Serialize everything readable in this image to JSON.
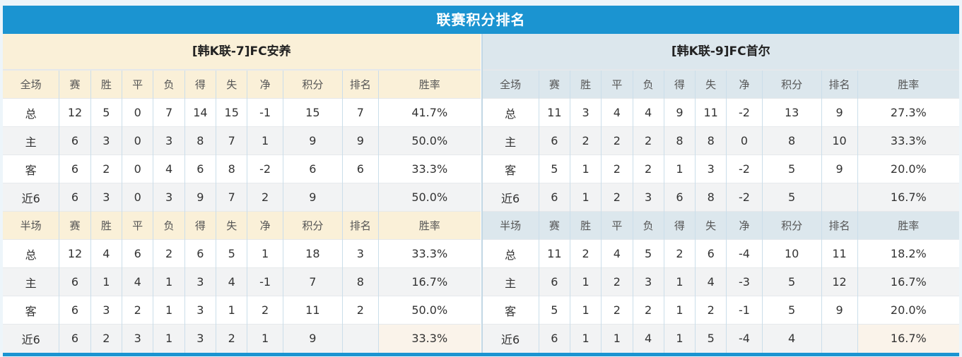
{
  "page": {
    "title": "联赛积分排名"
  },
  "columns": {
    "full_label": "全场",
    "half_label": "半场",
    "stat_headers": [
      "赛",
      "胜",
      "平",
      "负",
      "得",
      "失",
      "净",
      "积分",
      "排名",
      "胜率"
    ]
  },
  "colors": {
    "banner_blue": "#1B94D1",
    "left_header_cream": "#FAF0D8",
    "right_header_bluegray": "#DCE7ED",
    "value_red": "#E63A3A",
    "rank_blue": "#3E8ED8",
    "home_label_red": "#C53131",
    "away_label_blue": "#5B5BD0"
  },
  "teams": [
    {
      "name": "[韩K联-7]FC安养",
      "full": {
        "rows": [
          {
            "label": "总",
            "values": [
              "12",
              "5",
              "0",
              "7",
              "14",
              "15",
              "-1"
            ],
            "points": "15",
            "rank": "7",
            "winrate": "41.7%"
          },
          {
            "label": "主",
            "values": [
              "6",
              "3",
              "0",
              "3",
              "8",
              "7",
              "1"
            ],
            "points": "9",
            "rank": "9",
            "winrate": "50.0%"
          },
          {
            "label": "客",
            "values": [
              "6",
              "2",
              "0",
              "4",
              "6",
              "8",
              "-2"
            ],
            "points": "6",
            "rank": "6",
            "winrate": "33.3%"
          },
          {
            "label": "近6",
            "values": [
              "6",
              "3",
              "0",
              "3",
              "9",
              "7",
              "2"
            ],
            "points": "9",
            "rank": "",
            "winrate": "50.0%"
          }
        ]
      },
      "half": {
        "rows": [
          {
            "label": "总",
            "values": [
              "12",
              "4",
              "6",
              "2",
              "6",
              "5",
              "1"
            ],
            "points": "18",
            "rank": "3",
            "winrate": "33.3%"
          },
          {
            "label": "主",
            "values": [
              "6",
              "1",
              "4",
              "1",
              "3",
              "4",
              "-1"
            ],
            "points": "7",
            "rank": "8",
            "winrate": "16.7%"
          },
          {
            "label": "客",
            "values": [
              "6",
              "3",
              "2",
              "1",
              "3",
              "1",
              "2"
            ],
            "points": "11",
            "rank": "2",
            "winrate": "50.0%"
          },
          {
            "label": "近6",
            "values": [
              "6",
              "2",
              "3",
              "1",
              "3",
              "2",
              "1"
            ],
            "points": "9",
            "rank": "",
            "winrate": "33.3%"
          }
        ]
      }
    },
    {
      "name": "[韩K联-9]FC首尔",
      "full": {
        "rows": [
          {
            "label": "总",
            "values": [
              "11",
              "3",
              "4",
              "4",
              "9",
              "11",
              "-2"
            ],
            "points": "13",
            "rank": "9",
            "winrate": "27.3%"
          },
          {
            "label": "主",
            "values": [
              "6",
              "2",
              "2",
              "2",
              "8",
              "8",
              "0"
            ],
            "points": "8",
            "rank": "10",
            "winrate": "33.3%"
          },
          {
            "label": "客",
            "values": [
              "5",
              "1",
              "2",
              "2",
              "1",
              "3",
              "-2"
            ],
            "points": "5",
            "rank": "9",
            "winrate": "20.0%"
          },
          {
            "label": "近6",
            "values": [
              "6",
              "1",
              "2",
              "3",
              "6",
              "8",
              "-2"
            ],
            "points": "5",
            "rank": "",
            "winrate": "16.7%"
          }
        ]
      },
      "half": {
        "rows": [
          {
            "label": "总",
            "values": [
              "11",
              "2",
              "4",
              "5",
              "2",
              "6",
              "-4"
            ],
            "points": "10",
            "rank": "11",
            "winrate": "18.2%"
          },
          {
            "label": "主",
            "values": [
              "6",
              "1",
              "2",
              "3",
              "1",
              "4",
              "-3"
            ],
            "points": "5",
            "rank": "12",
            "winrate": "16.7%"
          },
          {
            "label": "客",
            "values": [
              "5",
              "1",
              "2",
              "2",
              "1",
              "2",
              "-1"
            ],
            "points": "5",
            "rank": "9",
            "winrate": "20.0%"
          },
          {
            "label": "近6",
            "values": [
              "6",
              "1",
              "1",
              "4",
              "1",
              "5",
              "-4"
            ],
            "points": "4",
            "rank": "",
            "winrate": "16.7%"
          }
        ]
      }
    }
  ]
}
